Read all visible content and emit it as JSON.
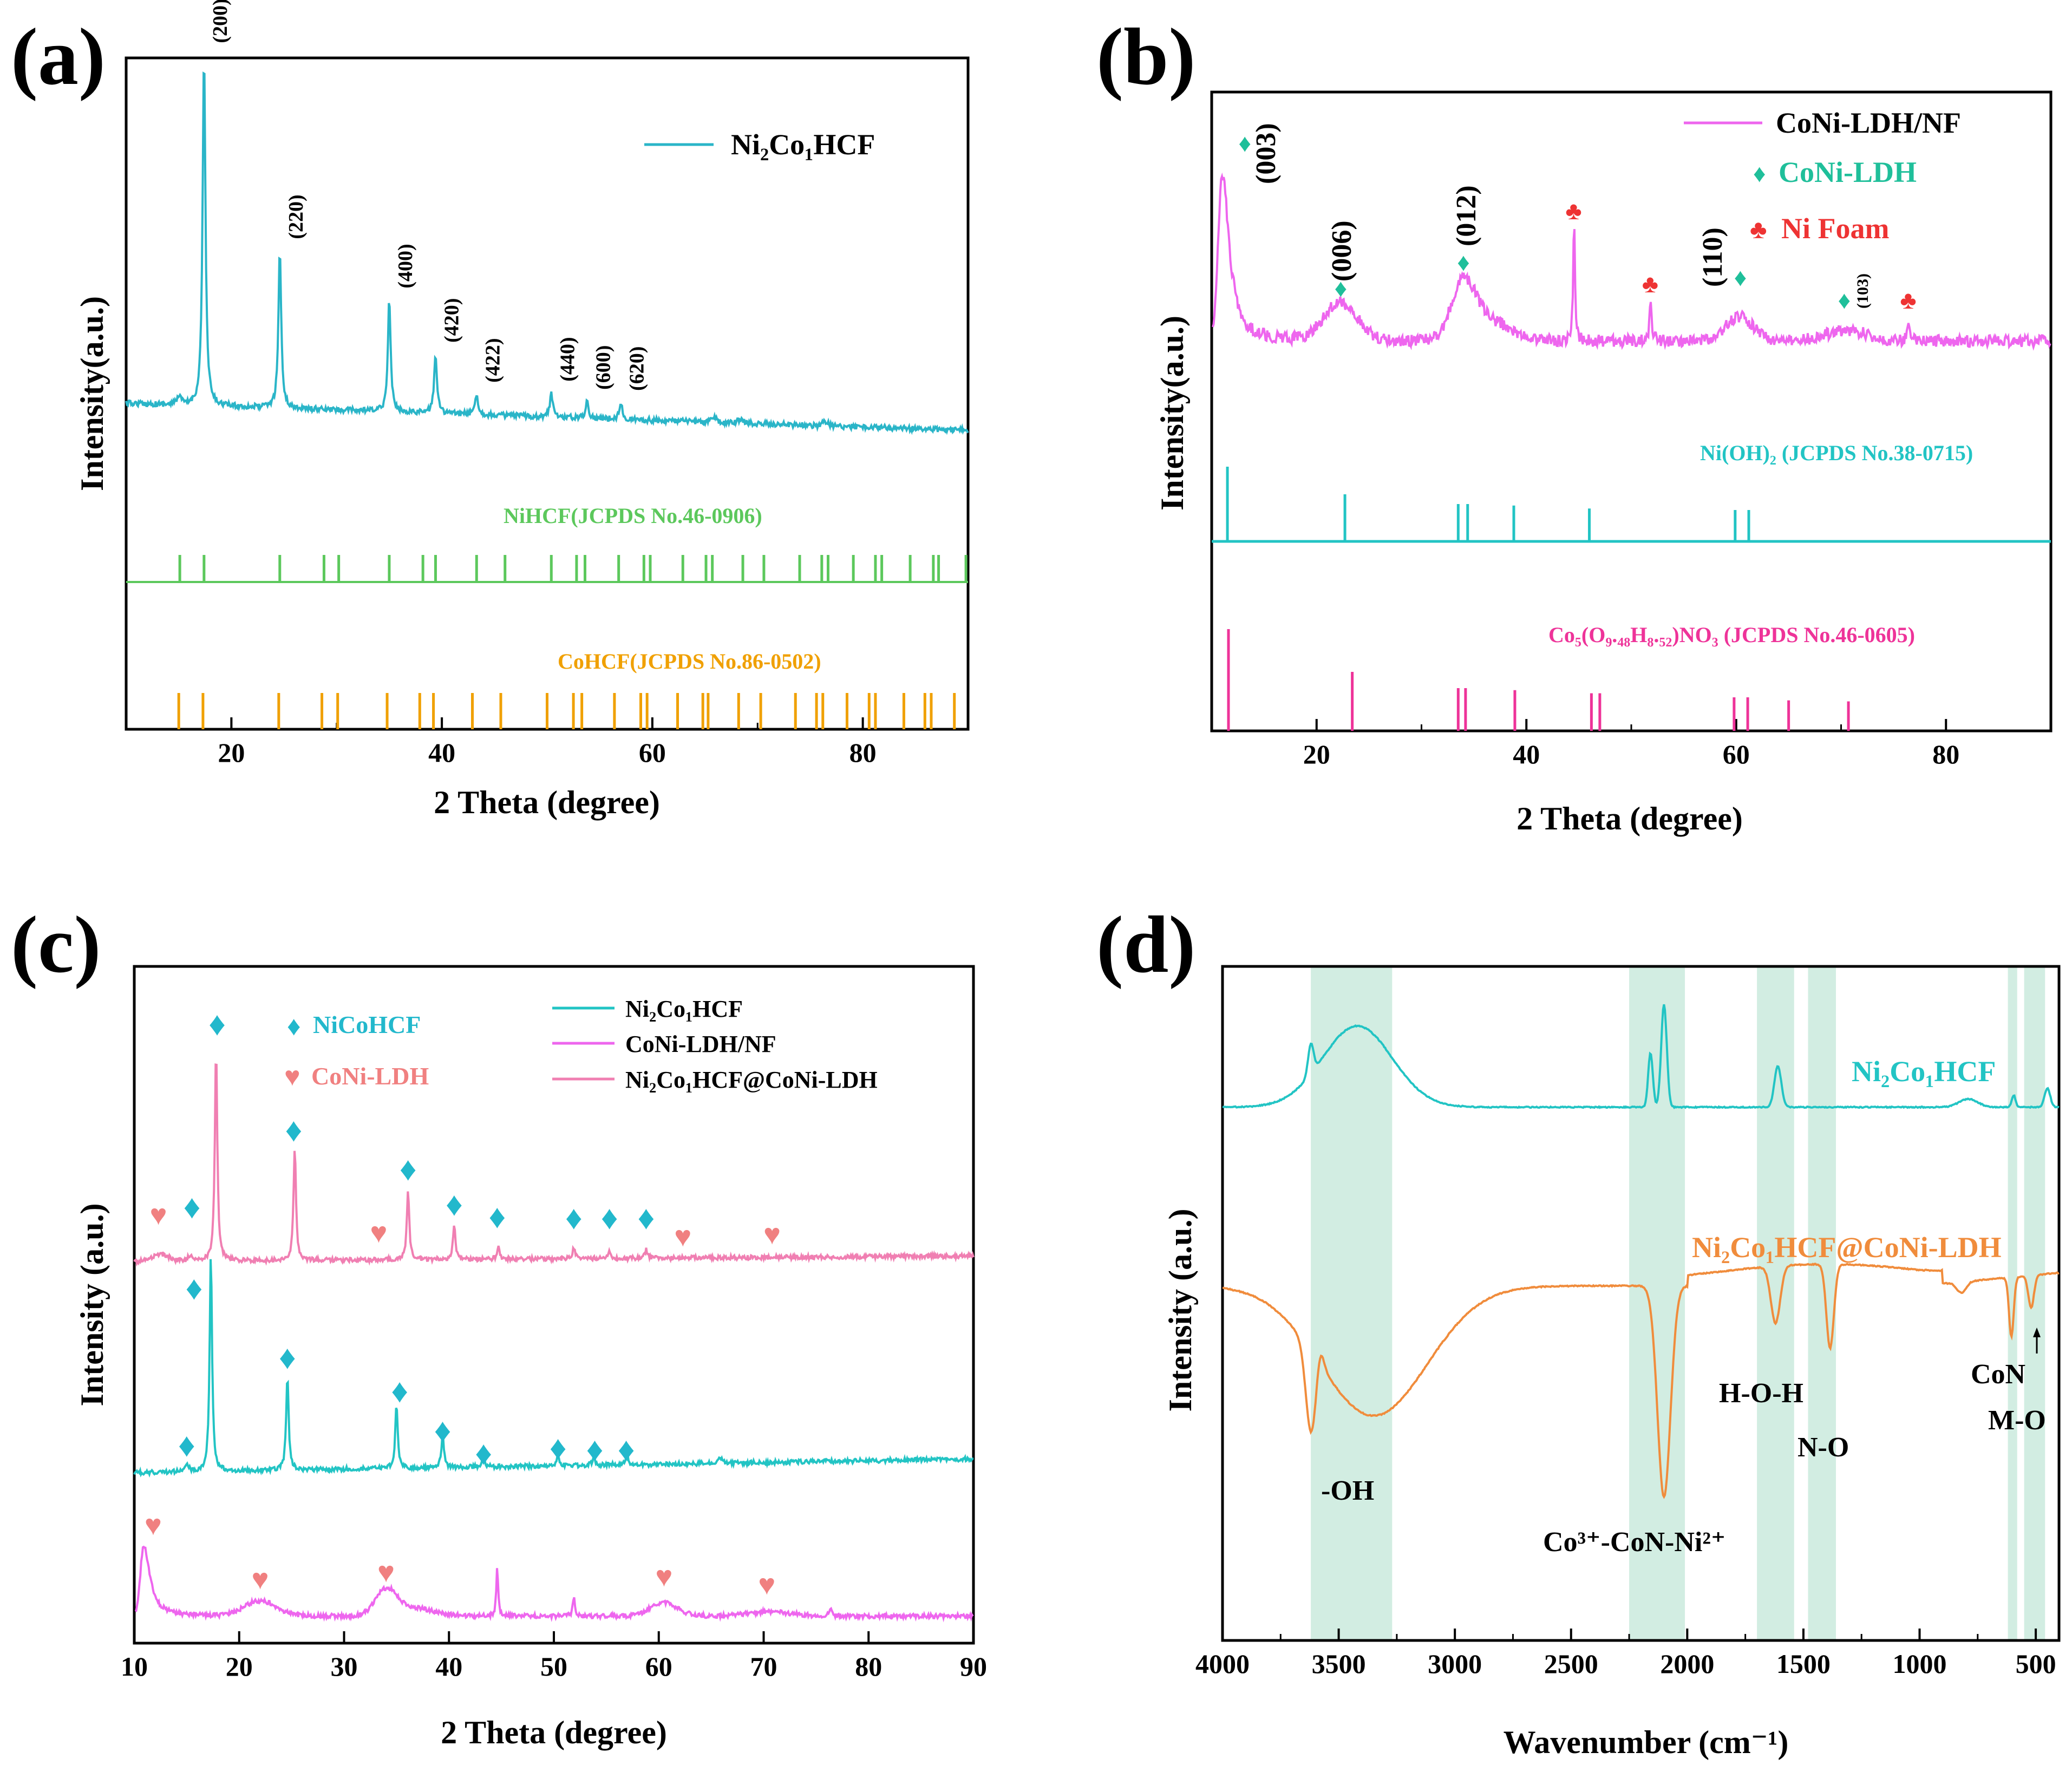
{
  "chart_data": [
    {
      "id": "a",
      "type": "line",
      "panel_label": "(a)",
      "xlabel": "2 Theta (degree)",
      "ylabel": "Intensity(a.u.)",
      "xlim": [
        10,
        90
      ],
      "xticks": [
        "20",
        "40",
        "60",
        "80"
      ],
      "series": [
        {
          "name": "Ni₂Co₁HCF",
          "color": "#2ab5c8",
          "peaks": [
            [
              17.4,
              1.0
            ],
            [
              24.6,
              0.45
            ],
            [
              35.0,
              0.32
            ],
            [
              39.4,
              0.17
            ],
            [
              43.3,
              0.06
            ],
            [
              50.4,
              0.07
            ],
            [
              53.8,
              0.05
            ],
            [
              57.0,
              0.05
            ]
          ],
          "peak_labels": [
            "(200)",
            "(220)",
            "(400)",
            "(420)",
            "(422)",
            "(440)",
            "(600)",
            "(620)"
          ]
        }
      ],
      "references": [
        {
          "name": "NiHCF(JCPDS No.46-0906)",
          "color": "#5cc85c",
          "positions": [
            15.1,
            17.4,
            24.6,
            28.8,
            30.2,
            35.0,
            38.2,
            39.4,
            43.3,
            46.0,
            50.4,
            52.8,
            53.6,
            56.8,
            59.2,
            59.8,
            62.9,
            65.1,
            65.7,
            68.6,
            70.6,
            74.0,
            76.1,
            76.7,
            79.1,
            81.2,
            81.8,
            84.5,
            86.7,
            87.2,
            89.8
          ]
        },
        {
          "name": "CoHCF(JCPDS No.86-0502)",
          "color": "#f0a000",
          "positions": [
            15.0,
            17.3,
            24.5,
            28.6,
            30.1,
            34.8,
            37.9,
            39.2,
            42.9,
            45.6,
            50.0,
            52.5,
            53.3,
            56.4,
            58.9,
            59.5,
            62.4,
            64.8,
            65.3,
            68.2,
            70.3,
            73.6,
            75.6,
            76.2,
            78.5,
            80.6,
            81.2,
            83.9,
            85.9,
            86.5,
            88.7
          ]
        }
      ]
    },
    {
      "id": "b",
      "type": "line",
      "panel_label": "(b)",
      "xlabel": "2 Theta (degree)",
      "ylabel": "Intensity(a.u.)",
      "xlim": [
        10,
        90
      ],
      "xticks": [
        "20",
        "40",
        "60",
        "80"
      ],
      "series": [
        {
          "name": "CoNi-LDH/NF",
          "color": "#ee66ee"
        }
      ],
      "legend": {
        "ldh": "CoNi-LDH",
        "nf": "Ni Foam"
      },
      "annotations": {
        "h003": "(003)",
        "h006": "(006)",
        "h012": "(012)",
        "h110": "(110)",
        "h103": "(103)"
      },
      "ldh_marks": [
        11.3,
        22.3,
        34.0,
        60.4,
        70.3
      ],
      "nf_marks": [
        44.5,
        51.8,
        76.4
      ],
      "references": [
        {
          "name": "Ni(OH)₂ (JCPDS No.38-0715)",
          "color": "#22c4c4",
          "lines": [
            [
              11.5,
              1.0
            ],
            [
              22.7,
              0.63
            ],
            [
              33.5,
              0.5
            ],
            [
              34.4,
              0.5
            ],
            [
              38.8,
              0.48
            ],
            [
              46.0,
              0.44
            ],
            [
              59.9,
              0.42
            ],
            [
              61.2,
              0.42
            ]
          ]
        },
        {
          "name": "Co₅(O₉.₄₈H₈.₅₂)NO₃ (JCPDS No.46-0605)",
          "color": "#ee3399",
          "lines": [
            [
              11.6,
              1.0
            ],
            [
              23.4,
              0.58
            ],
            [
              33.5,
              0.42
            ],
            [
              34.2,
              0.42
            ],
            [
              38.9,
              0.4
            ],
            [
              46.2,
              0.37
            ],
            [
              47.0,
              0.37
            ],
            [
              59.8,
              0.33
            ],
            [
              61.1,
              0.33
            ],
            [
              65.0,
              0.3
            ],
            [
              70.7,
              0.29
            ]
          ]
        }
      ]
    },
    {
      "id": "c",
      "type": "line",
      "panel_label": "(c)",
      "xlabel": "2 Theta (degree)",
      "ylabel": "Intensity (a.u.)",
      "xlim": [
        10,
        90
      ],
      "xticks": [
        "10",
        "20",
        "30",
        "40",
        "50",
        "60",
        "70",
        "80",
        "90"
      ],
      "legend_markers": {
        "nicohcf": "NiCoHCF",
        "ldh": "CoNi-LDH"
      },
      "series": [
        {
          "name": "Ni₂Co₁HCF",
          "color": "#22c4c4"
        },
        {
          "name": "CoNi-LDH/NF",
          "color": "#ee66ee"
        },
        {
          "name": "Ni₂Co₁HCF@CoNi-LDH",
          "color": "#f07fb2"
        }
      ]
    },
    {
      "id": "d",
      "type": "line",
      "panel_label": "(d)",
      "xlabel": "Wavenumber (cm⁻¹)",
      "ylabel": "Intensity (a.u.)",
      "xlim": [
        4000,
        400
      ],
      "xticks": [
        "4000",
        "3500",
        "3000",
        "2500",
        "2000",
        "1500",
        "1000",
        "500"
      ],
      "series": [
        {
          "name": "Ni₂Co₁HCF",
          "color": "#22c4c4"
        },
        {
          "name": "Ni₂Co₁HCF@CoNi-LDH",
          "color": "#f08c3c"
        }
      ],
      "bands": [
        [
          3620,
          3270
        ],
        [
          2250,
          2010
        ],
        [
          1700,
          1540
        ],
        [
          1480,
          1360
        ],
        [
          620,
          580
        ],
        [
          550,
          460
        ]
      ],
      "annotations": {
        "oh": "-OH",
        "con": "Co³⁺-CoN-Ni²⁺",
        "hoh": "H-O-H",
        "no": "N-O",
        "con2": "CoN",
        "mo": "M-O"
      }
    }
  ]
}
